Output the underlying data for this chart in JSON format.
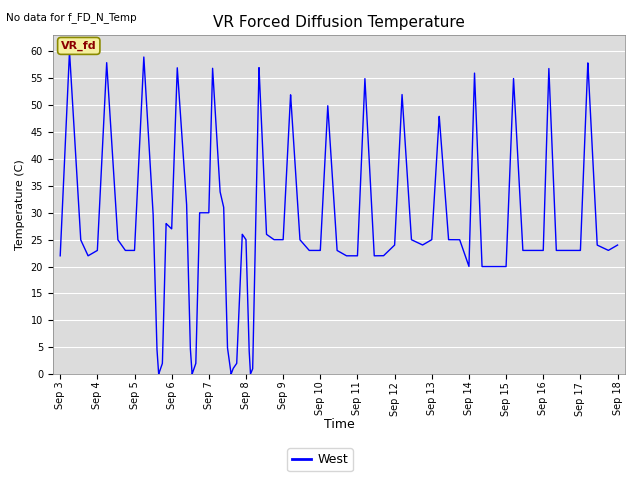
{
  "title": "VR Forced Diffusion Temperature",
  "topleft_text": "No data for f_FD_N_Temp",
  "ylabel": "Temperature (C)",
  "xlabel": "Time",
  "annotation_label": "VR_fd",
  "legend_label": "West",
  "line_color": "blue",
  "bg_color": "#dcdcdc",
  "ylim": [
    0,
    63
  ],
  "yticks": [
    0,
    5,
    10,
    15,
    20,
    25,
    30,
    35,
    40,
    45,
    50,
    55,
    60
  ],
  "xtick_labels": [
    "Sep 3",
    "Sep 4",
    "Sep 5",
    "Sep 6",
    "Sep 7",
    "Sep 8",
    "Sep 9",
    "Sep 10",
    "Sep 11",
    "Sep 12",
    "Sep 13",
    "Sep 14",
    "Sep 15",
    "Sep 16",
    "Sep 17",
    "Sep 18"
  ],
  "key_x": [
    0.0,
    0.25,
    0.55,
    0.75,
    1.0,
    1.25,
    1.55,
    1.75,
    2.0,
    2.25,
    2.5,
    2.6,
    2.65,
    2.75,
    2.85,
    3.0,
    3.15,
    3.4,
    3.5,
    3.55,
    3.65,
    3.75,
    4.0,
    4.1,
    4.3,
    4.4,
    4.5,
    4.6,
    4.65,
    4.75,
    4.9,
    5.0,
    5.08,
    5.12,
    5.18,
    5.25,
    5.35,
    5.55,
    5.75,
    6.0,
    6.2,
    6.45,
    6.7,
    7.0,
    7.2,
    7.45,
    7.7,
    8.0,
    8.2,
    8.45,
    8.7,
    9.0,
    9.2,
    9.45,
    9.75,
    10.0,
    10.2,
    10.45,
    10.75,
    11.0,
    11.15,
    11.35,
    11.6,
    12.0,
    12.2,
    12.45,
    12.75,
    13.0,
    13.15,
    13.35,
    13.65,
    14.0,
    14.2,
    14.45,
    14.75,
    15.0
  ],
  "key_y": [
    22,
    60,
    25,
    22,
    23,
    58,
    25,
    23,
    23,
    59,
    30,
    5,
    0,
    2,
    28,
    27,
    57,
    32,
    5,
    0,
    2,
    30,
    30,
    57,
    34,
    31,
    5,
    0,
    1,
    2,
    26,
    25,
    5,
    0,
    1,
    24,
    57,
    26,
    25,
    25,
    52,
    25,
    23,
    23,
    50,
    23,
    22,
    22,
    55,
    22,
    22,
    24,
    52,
    25,
    24,
    25,
    48,
    25,
    25,
    20,
    56,
    20,
    20,
    20,
    55,
    23,
    23,
    23,
    57,
    23,
    23,
    23,
    58,
    24,
    23,
    24
  ]
}
